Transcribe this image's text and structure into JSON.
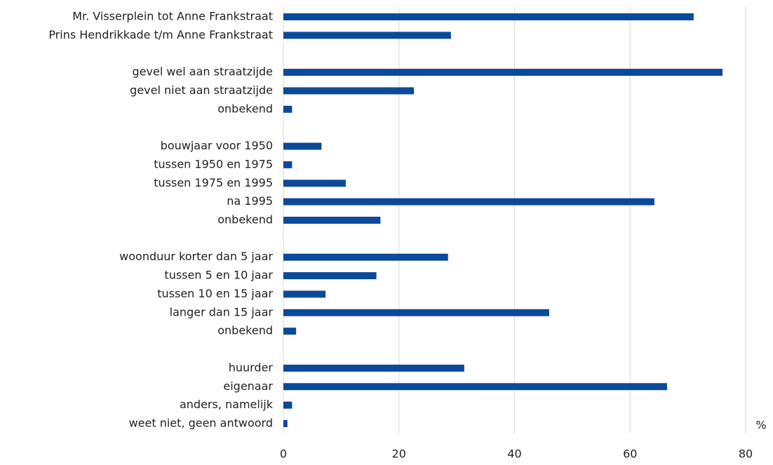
{
  "chart_data": {
    "type": "barh",
    "categories": [
      "Mr. Visserplein tot Anne Frankstraat",
      "Prins Hendrikkade t/m Anne Frankstraat",
      null,
      "gevel wel aan straatzijde",
      "gevel niet aan straatzijde",
      "onbekend",
      null,
      "bouwjaar voor 1950",
      "tussen 1950 en 1975",
      "tussen 1975 en 1995",
      "na 1995",
      "onbekend",
      null,
      "woonduur korter dan 5 jaar",
      "tussen 5 en 10 jaar",
      "tussen 10 en 15 jaar",
      "langer dan 15 jaar",
      "onbekend",
      null,
      "huurder",
      "eigenaar",
      "anders, namelijk",
      "weet niet, geen antwoord"
    ],
    "values": [
      71,
      29,
      null,
      76,
      22.6,
      1.5,
      null,
      6.6,
      1.5,
      10.8,
      64.2,
      16.8,
      null,
      28.5,
      16.1,
      7.3,
      46,
      2.2,
      null,
      31.3,
      66.4,
      1.5,
      0.7
    ],
    "color": "#0b4a9b",
    "xlabel": "%",
    "xlim": [
      0,
      80
    ],
    "xticks": [
      0,
      20,
      40,
      60,
      80
    ],
    "grid": true
  }
}
